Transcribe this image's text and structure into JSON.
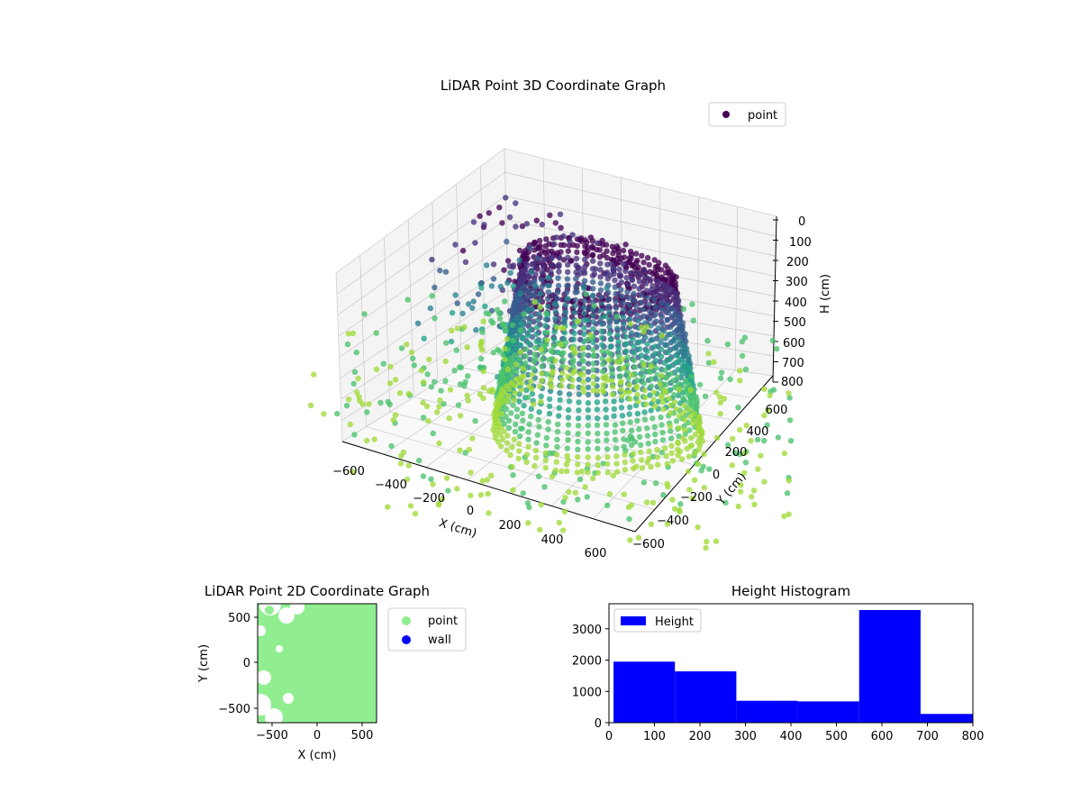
{
  "colors": {
    "point_cmap": [
      "#440154",
      "#46327e",
      "#365c8d",
      "#277f8e",
      "#1fa187",
      "#4ac16d",
      "#a0da39"
    ],
    "point_2d": "#90ee90",
    "wall": "#0000ff",
    "hist_bar": "#0000ff",
    "legend_point_3d": "#440154"
  },
  "plot3d": {
    "title": "LiDAR Point 3D Coordinate Graph",
    "legend": [
      "point"
    ],
    "xlabel": "X (cm)",
    "ylabel": "Y (cm)",
    "zlabel": "H (cm)",
    "x_ticks": [
      "−600",
      "−400",
      "−200",
      "0",
      "200",
      "400",
      "600"
    ],
    "y_ticks": [
      "−600",
      "−400",
      "−200",
      "0",
      "200",
      "400",
      "600"
    ],
    "z_ticks": [
      "0",
      "100",
      "200",
      "300",
      "400",
      "500",
      "600",
      "700",
      "800"
    ]
  },
  "plot2d": {
    "title": "LiDAR Point 2D Coordinate Graph",
    "xlabel": "X (cm)",
    "ylabel": "Y (cm)",
    "x_ticks": [
      "−500",
      "0",
      "500"
    ],
    "y_ticks": [
      "500",
      "0",
      "−500"
    ],
    "legend": [
      "point",
      "wall"
    ]
  },
  "chart_data": [
    {
      "type": "scatter",
      "title": "LiDAR Point 3D Coordinate Graph",
      "xlabel": "X (cm)",
      "ylabel": "Y (cm)",
      "zlabel": "H (cm)",
      "xlim": [
        -650,
        650
      ],
      "ylim": [
        -650,
        650
      ],
      "zlim": [
        800,
        0
      ],
      "z_inverted": true,
      "grid": true,
      "legend": "top-right",
      "series": [
        {
          "name": "point"
        }
      ]
    },
    {
      "type": "scatter",
      "title": "LiDAR Point 2D Coordinate Graph",
      "xlabel": "X (cm)",
      "ylabel": "Y (cm)",
      "xlim": [
        -650,
        650
      ],
      "ylim": [
        -650,
        650
      ],
      "legend": "outside-right",
      "series": [
        {
          "name": "point"
        },
        {
          "name": "wall"
        }
      ]
    },
    {
      "type": "bar",
      "title": "Height Histogram",
      "xlim": [
        0,
        800
      ],
      "ylim": [
        0,
        3800
      ],
      "x_ticks": [
        0,
        100,
        200,
        300,
        400,
        500,
        600,
        700,
        800
      ],
      "y_ticks": [
        0,
        1000,
        2000,
        3000
      ],
      "legend": "top-left",
      "series": [
        {
          "name": "Height"
        }
      ],
      "bins": [
        {
          "x0": 10,
          "x1": 145,
          "value": 1950
        },
        {
          "x0": 145,
          "x1": 280,
          "value": 1640
        },
        {
          "x0": 280,
          "x1": 415,
          "value": 700
        },
        {
          "x0": 415,
          "x1": 550,
          "value": 680
        },
        {
          "x0": 550,
          "x1": 685,
          "value": 3600
        },
        {
          "x0": 685,
          "x1": 800,
          "value": 280
        }
      ]
    }
  ]
}
